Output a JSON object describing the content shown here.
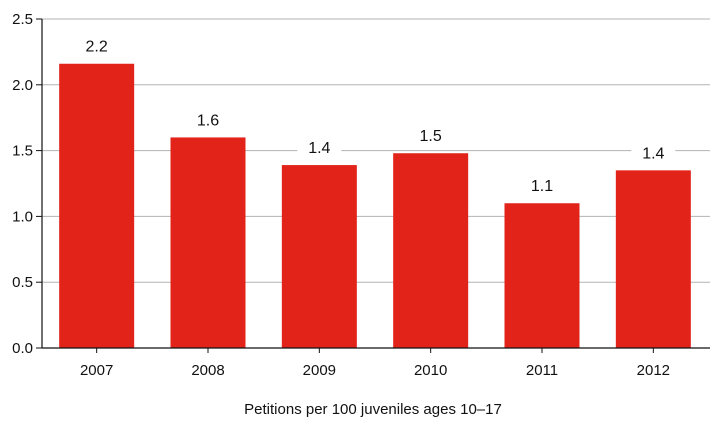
{
  "chart_data": {
    "type": "bar",
    "categories": [
      "2007",
      "2008",
      "2009",
      "2010",
      "2011",
      "2012"
    ],
    "values": [
      2.16,
      1.6,
      1.39,
      1.48,
      1.1,
      1.35
    ],
    "data_labels": [
      "2.2",
      "1.6",
      "1.4",
      "1.5",
      "1.1",
      "1.4"
    ],
    "xlabel": "Petitions per 100 juveniles ages 10–17",
    "ylabel": "",
    "ylim": [
      0,
      2.5
    ],
    "yticks": [
      "0.0",
      "0.5",
      "1.0",
      "1.5",
      "2.0",
      "2.5"
    ],
    "grid": true,
    "bar_color": "#e2231a",
    "grid_color": "#b3b3b3"
  }
}
